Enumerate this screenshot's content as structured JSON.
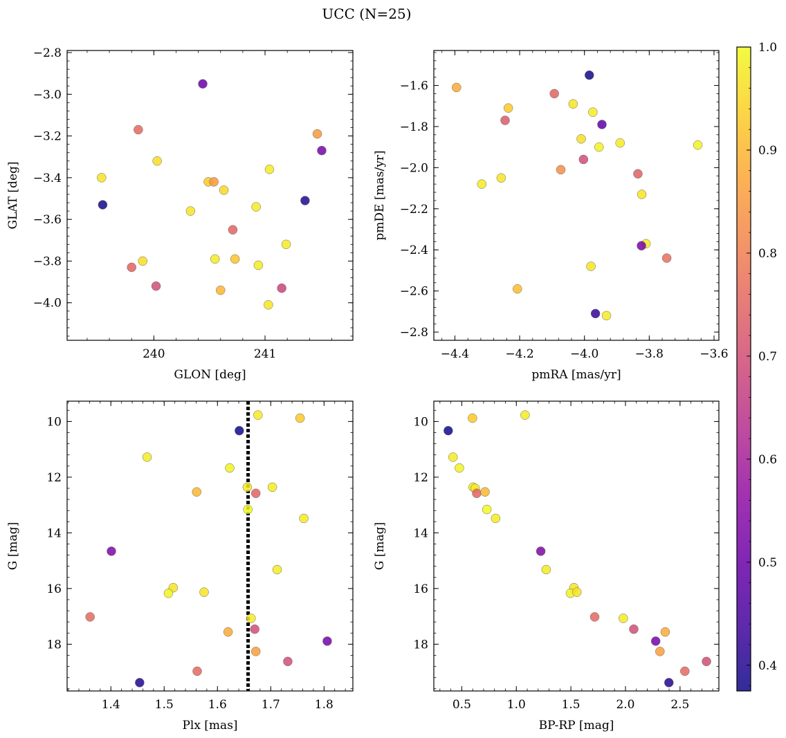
{
  "figure": {
    "title": "UCC (N=25)"
  },
  "colorbar": {
    "range": [
      0.375,
      1.0
    ],
    "ticks": [
      0.4,
      0.5,
      0.6,
      0.7,
      0.8,
      0.9,
      1.0
    ],
    "tick_labels": [
      "0.4",
      "0.5",
      "0.6",
      "0.7",
      "0.8",
      "0.9",
      "1.0"
    ],
    "colormap": "plasma"
  },
  "chart_data": [
    {
      "type": "scatter",
      "xlabel": "GLON [deg]",
      "ylabel": "GLAT [deg]",
      "xlim": [
        239.22,
        241.79
      ],
      "ylim": [
        -4.18,
        -2.79
      ],
      "xticks": [
        240,
        241
      ],
      "xtick_labels": [
        "240",
        "241"
      ],
      "yticks": [
        -4.0,
        -3.8,
        -3.6,
        -3.4,
        -3.2,
        -3.0,
        -2.8
      ],
      "ytick_labels": [
        "−4.0",
        "−3.8",
        "−3.6",
        "−3.4",
        "−3.2",
        "−3.0",
        "−2.8"
      ],
      "points": [
        {
          "x": 240.44,
          "y": -2.95,
          "c": 0.5
        },
        {
          "x": 239.86,
          "y": -3.17,
          "c": 0.76
        },
        {
          "x": 241.47,
          "y": -3.19,
          "c": 0.85
        },
        {
          "x": 241.51,
          "y": -3.27,
          "c": 0.52
        },
        {
          "x": 240.03,
          "y": -3.32,
          "c": 0.96
        },
        {
          "x": 241.04,
          "y": -3.36,
          "c": 0.98
        },
        {
          "x": 239.53,
          "y": -3.4,
          "c": 0.97
        },
        {
          "x": 240.49,
          "y": -3.42,
          "c": 0.93
        },
        {
          "x": 240.54,
          "y": -3.42,
          "c": 0.85
        },
        {
          "x": 240.63,
          "y": -3.46,
          "c": 0.95
        },
        {
          "x": 241.36,
          "y": -3.51,
          "c": 0.4
        },
        {
          "x": 239.54,
          "y": -3.53,
          "c": 0.38
        },
        {
          "x": 240.92,
          "y": -3.54,
          "c": 0.98
        },
        {
          "x": 240.33,
          "y": -3.56,
          "c": 0.97
        },
        {
          "x": 240.71,
          "y": -3.65,
          "c": 0.75
        },
        {
          "x": 241.19,
          "y": -3.72,
          "c": 0.98
        },
        {
          "x": 240.55,
          "y": -3.79,
          "c": 0.98
        },
        {
          "x": 240.73,
          "y": -3.79,
          "c": 0.92
        },
        {
          "x": 239.9,
          "y": -3.8,
          "c": 0.96
        },
        {
          "x": 239.8,
          "y": -3.83,
          "c": 0.75
        },
        {
          "x": 240.94,
          "y": -3.82,
          "c": 0.98
        },
        {
          "x": 240.02,
          "y": -3.92,
          "c": 0.7
        },
        {
          "x": 241.15,
          "y": -3.93,
          "c": 0.68
        },
        {
          "x": 240.6,
          "y": -3.94,
          "c": 0.9
        },
        {
          "x": 241.03,
          "y": -4.01,
          "c": 0.97
        }
      ]
    },
    {
      "type": "scatter",
      "xlabel": "pmRA [mas/yr]",
      "ylabel": "pmDE [mas/yr]",
      "xlim": [
        -4.465,
        -3.585
      ],
      "ylim": [
        -2.84,
        -1.43
      ],
      "xticks": [
        -4.4,
        -4.2,
        -4.0,
        -3.8,
        -3.6
      ],
      "xtick_labels": [
        "−4.4",
        "−4.2",
        "−4.0",
        "−3.8",
        "−3.6"
      ],
      "yticks": [
        -2.8,
        -2.6,
        -2.4,
        -2.2,
        -2.0,
        -1.8,
        -1.6
      ],
      "ytick_labels": [
        "−2.8",
        "−2.6",
        "−2.4",
        "−2.2",
        "−2.0",
        "−1.8",
        "−1.6"
      ],
      "points": [
        {
          "x": -3.985,
          "y": -1.55,
          "c": 0.38
        },
        {
          "x": -4.395,
          "y": -1.61,
          "c": 0.88
        },
        {
          "x": -4.093,
          "y": -1.64,
          "c": 0.75
        },
        {
          "x": -4.035,
          "y": -1.69,
          "c": 0.97
        },
        {
          "x": -4.235,
          "y": -1.71,
          "c": 0.93
        },
        {
          "x": -3.974,
          "y": -1.73,
          "c": 0.98
        },
        {
          "x": -4.245,
          "y": -1.77,
          "c": 0.73
        },
        {
          "x": -3.946,
          "y": -1.79,
          "c": 0.48
        },
        {
          "x": -4.01,
          "y": -1.86,
          "c": 0.96
        },
        {
          "x": -3.89,
          "y": -1.88,
          "c": 0.98
        },
        {
          "x": -3.65,
          "y": -1.89,
          "c": 0.99
        },
        {
          "x": -3.955,
          "y": -1.9,
          "c": 0.99
        },
        {
          "x": -4.003,
          "y": -1.96,
          "c": 0.7
        },
        {
          "x": -4.073,
          "y": -2.01,
          "c": 0.83
        },
        {
          "x": -3.835,
          "y": -2.03,
          "c": 0.74
        },
        {
          "x": -4.257,
          "y": -2.05,
          "c": 0.97
        },
        {
          "x": -4.317,
          "y": -2.08,
          "c": 0.98
        },
        {
          "x": -3.823,
          "y": -2.13,
          "c": 0.97
        },
        {
          "x": -3.81,
          "y": -2.37,
          "c": 0.98
        },
        {
          "x": -3.824,
          "y": -2.38,
          "c": 0.52
        },
        {
          "x": -3.746,
          "y": -2.44,
          "c": 0.77
        },
        {
          "x": -3.98,
          "y": -2.48,
          "c": 0.97
        },
        {
          "x": -4.207,
          "y": -2.59,
          "c": 0.91
        },
        {
          "x": -3.966,
          "y": -2.71,
          "c": 0.42
        },
        {
          "x": -3.932,
          "y": -2.72,
          "c": 0.98
        }
      ]
    },
    {
      "type": "scatter",
      "xlabel": "Plx [mas]",
      "ylabel": "G [mag]",
      "xlim": [
        1.3179,
        1.8541
      ],
      "ylim": [
        19.68,
        9.27
      ],
      "y_inverted": true,
      "xticks": [
        1.4,
        1.5,
        1.6,
        1.7,
        1.8
      ],
      "xtick_labels": [
        "1.4",
        "1.5",
        "1.6",
        "1.7",
        "1.8"
      ],
      "yticks": [
        10,
        12,
        14,
        16,
        18
      ],
      "ytick_labels": [
        "10",
        "12",
        "14",
        "16",
        "18"
      ],
      "vline": 1.6575,
      "points": [
        {
          "x": 1.676,
          "y": 9.77,
          "c": 0.98
        },
        {
          "x": 1.755,
          "y": 9.88,
          "c": 0.93
        },
        {
          "x": 1.641,
          "y": 10.33,
          "c": 0.38
        },
        {
          "x": 1.468,
          "y": 11.28,
          "c": 0.98
        },
        {
          "x": 1.623,
          "y": 11.67,
          "c": 0.99
        },
        {
          "x": 1.703,
          "y": 12.36,
          "c": 0.98
        },
        {
          "x": 1.561,
          "y": 12.53,
          "c": 0.9
        },
        {
          "x": 1.656,
          "y": 12.36,
          "c": 0.98
        },
        {
          "x": 1.672,
          "y": 12.58,
          "c": 0.75
        },
        {
          "x": 1.657,
          "y": 13.16,
          "c": 1.0
        },
        {
          "x": 1.762,
          "y": 13.48,
          "c": 0.98
        },
        {
          "x": 1.401,
          "y": 14.66,
          "c": 0.53
        },
        {
          "x": 1.712,
          "y": 15.32,
          "c": 0.98
        },
        {
          "x": 1.517,
          "y": 15.97,
          "c": 0.97
        },
        {
          "x": 1.508,
          "y": 16.17,
          "c": 0.99
        },
        {
          "x": 1.575,
          "y": 16.13,
          "c": 0.97
        },
        {
          "x": 1.361,
          "y": 17.02,
          "c": 0.76
        },
        {
          "x": 1.663,
          "y": 17.07,
          "c": 0.98
        },
        {
          "x": 1.67,
          "y": 17.46,
          "c": 0.7
        },
        {
          "x": 1.62,
          "y": 17.56,
          "c": 0.88
        },
        {
          "x": 1.806,
          "y": 17.89,
          "c": 0.52
        },
        {
          "x": 1.672,
          "y": 18.26,
          "c": 0.86
        },
        {
          "x": 1.732,
          "y": 18.62,
          "c": 0.7
        },
        {
          "x": 1.562,
          "y": 18.97,
          "c": 0.76
        },
        {
          "x": 1.454,
          "y": 19.38,
          "c": 0.4
        }
      ]
    },
    {
      "type": "scatter",
      "xlabel": "BP-RP [mag]",
      "ylabel": "G [mag]",
      "xlim": [
        0.244,
        2.856
      ],
      "ylim": [
        19.68,
        9.27
      ],
      "y_inverted": true,
      "xticks": [
        0.5,
        1.0,
        1.5,
        2.0,
        2.5
      ],
      "xtick_labels": [
        "0.5",
        "1.0",
        "1.5",
        "2.0",
        "2.5"
      ],
      "yticks": [
        10,
        12,
        14,
        16,
        18
      ],
      "ytick_labels": [
        "10",
        "12",
        "14",
        "16",
        "18"
      ],
      "points": [
        {
          "x": 0.376,
          "y": 10.33,
          "c": 0.38
        },
        {
          "x": 0.598,
          "y": 9.88,
          "c": 0.93
        },
        {
          "x": 1.08,
          "y": 9.77,
          "c": 0.98
        },
        {
          "x": 0.42,
          "y": 11.28,
          "c": 0.98
        },
        {
          "x": 0.478,
          "y": 11.67,
          "c": 0.99
        },
        {
          "x": 0.604,
          "y": 12.36,
          "c": 0.98
        },
        {
          "x": 0.623,
          "y": 12.4,
          "c": 0.98
        },
        {
          "x": 0.637,
          "y": 12.58,
          "c": 0.75
        },
        {
          "x": 0.713,
          "y": 12.53,
          "c": 0.9
        },
        {
          "x": 0.73,
          "y": 13.16,
          "c": 1.0
        },
        {
          "x": 0.81,
          "y": 13.48,
          "c": 0.98
        },
        {
          "x": 1.224,
          "y": 14.66,
          "c": 0.53
        },
        {
          "x": 1.273,
          "y": 15.32,
          "c": 0.98
        },
        {
          "x": 1.528,
          "y": 15.97,
          "c": 0.97
        },
        {
          "x": 1.496,
          "y": 16.17,
          "c": 0.99
        },
        {
          "x": 1.555,
          "y": 16.13,
          "c": 0.97
        },
        {
          "x": 1.718,
          "y": 17.02,
          "c": 0.76
        },
        {
          "x": 1.98,
          "y": 17.07,
          "c": 0.98
        },
        {
          "x": 2.076,
          "y": 17.46,
          "c": 0.7
        },
        {
          "x": 2.364,
          "y": 17.56,
          "c": 0.88
        },
        {
          "x": 2.277,
          "y": 17.89,
          "c": 0.52
        },
        {
          "x": 2.316,
          "y": 18.26,
          "c": 0.86
        },
        {
          "x": 2.742,
          "y": 18.62,
          "c": 0.7
        },
        {
          "x": 2.544,
          "y": 18.97,
          "c": 0.76
        },
        {
          "x": 2.398,
          "y": 19.38,
          "c": 0.4
        }
      ]
    }
  ]
}
